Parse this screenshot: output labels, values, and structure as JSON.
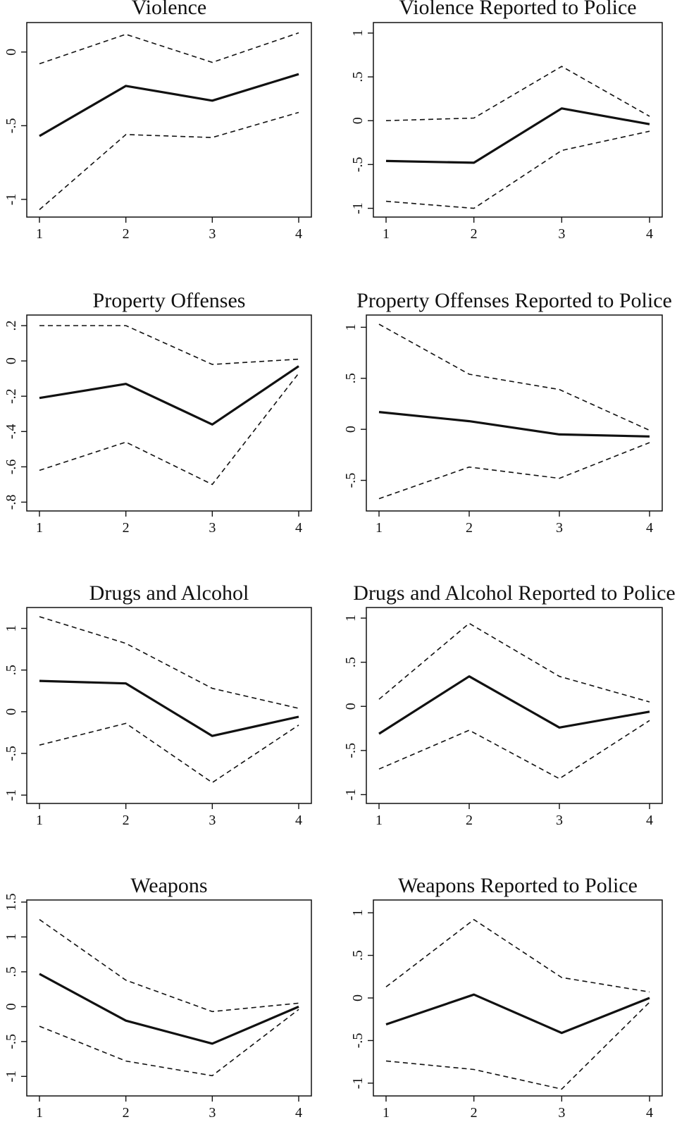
{
  "chart_data": [
    {
      "type": "line",
      "title": "Violence",
      "x": [
        1,
        2,
        3,
        4
      ],
      "x_ticks": [
        1,
        2,
        3,
        4
      ],
      "ylim": [
        -1.12,
        0.2
      ],
      "y_ticks": [
        {
          "value": -1,
          "label": "-1"
        },
        {
          "value": -0.5,
          "label": "-.5"
        },
        {
          "value": 0,
          "label": "0"
        }
      ],
      "series": [
        {
          "role": "estimate",
          "values": [
            -0.57,
            -0.23,
            -0.33,
            -0.15
          ]
        },
        {
          "role": "upper",
          "values": [
            -0.08,
            0.12,
            -0.07,
            0.13
          ]
        },
        {
          "role": "lower",
          "values": [
            -1.07,
            -0.56,
            -0.58,
            -0.41
          ]
        }
      ]
    },
    {
      "type": "line",
      "title": "Violence Reported to Police",
      "x": [
        1,
        2,
        3,
        4
      ],
      "x_ticks": [
        1,
        2,
        3,
        4
      ],
      "ylim": [
        -1.1,
        1.12
      ],
      "y_ticks": [
        {
          "value": -1,
          "label": "-1"
        },
        {
          "value": -0.5,
          "label": "-.5"
        },
        {
          "value": 0,
          "label": "0"
        },
        {
          "value": 0.5,
          "label": ".5"
        },
        {
          "value": 1,
          "label": "1"
        }
      ],
      "series": [
        {
          "role": "estimate",
          "values": [
            -0.46,
            -0.48,
            0.14,
            -0.04
          ]
        },
        {
          "role": "upper",
          "values": [
            0.0,
            0.03,
            0.62,
            0.05
          ]
        },
        {
          "role": "lower",
          "values": [
            -0.92,
            -1.0,
            -0.34,
            -0.12
          ]
        }
      ]
    },
    {
      "type": "line",
      "title": "Property Offenses",
      "x": [
        1,
        2,
        3,
        4
      ],
      "x_ticks": [
        1,
        2,
        3,
        4
      ],
      "ylim": [
        -0.85,
        0.26
      ],
      "y_ticks": [
        {
          "value": -0.8,
          "label": "-.8"
        },
        {
          "value": -0.6,
          "label": "-.6"
        },
        {
          "value": -0.4,
          "label": "-.4"
        },
        {
          "value": -0.2,
          "label": "-.2"
        },
        {
          "value": 0,
          "label": "0"
        },
        {
          "value": 0.2,
          "label": ".2"
        }
      ],
      "series": [
        {
          "role": "estimate",
          "values": [
            -0.21,
            -0.13,
            -0.36,
            -0.03
          ]
        },
        {
          "role": "upper",
          "values": [
            0.2,
            0.2,
            -0.02,
            0.01
          ]
        },
        {
          "role": "lower",
          "values": [
            -0.62,
            -0.46,
            -0.7,
            -0.07
          ]
        }
      ]
    },
    {
      "type": "line",
      "title": "Property Offenses Reported to Police",
      "x": [
        1,
        2,
        3,
        4
      ],
      "x_ticks": [
        1,
        2,
        3,
        4
      ],
      "ylim": [
        -0.8,
        1.12
      ],
      "y_ticks": [
        {
          "value": -0.5,
          "label": "-.5"
        },
        {
          "value": 0,
          "label": "0"
        },
        {
          "value": 0.5,
          "label": ".5"
        },
        {
          "value": 1,
          "label": "1"
        }
      ],
      "series": [
        {
          "role": "estimate",
          "values": [
            0.17,
            0.08,
            -0.05,
            -0.07
          ]
        },
        {
          "role": "upper",
          "values": [
            1.03,
            0.54,
            0.39,
            -0.01
          ]
        },
        {
          "role": "lower",
          "values": [
            -0.68,
            -0.37,
            -0.48,
            -0.13
          ]
        }
      ]
    },
    {
      "type": "line",
      "title": "Drugs and Alcohol",
      "x": [
        1,
        2,
        3,
        4
      ],
      "x_ticks": [
        1,
        2,
        3,
        4
      ],
      "ylim": [
        -1.1,
        1.25
      ],
      "y_ticks": [
        {
          "value": -1,
          "label": "-1"
        },
        {
          "value": -0.5,
          "label": "-.5"
        },
        {
          "value": 0,
          "label": "0"
        },
        {
          "value": 0.5,
          "label": ".5"
        },
        {
          "value": 1,
          "label": "1"
        }
      ],
      "series": [
        {
          "role": "estimate",
          "values": [
            0.37,
            0.34,
            -0.29,
            -0.06
          ]
        },
        {
          "role": "upper",
          "values": [
            1.14,
            0.82,
            0.28,
            0.04
          ]
        },
        {
          "role": "lower",
          "values": [
            -0.4,
            -0.14,
            -0.85,
            -0.16
          ]
        }
      ]
    },
    {
      "type": "line",
      "title": "Drugs and Alcohol Reported to Police",
      "x": [
        1,
        2,
        3,
        4
      ],
      "x_ticks": [
        1,
        2,
        3,
        4
      ],
      "ylim": [
        -1.1,
        1.12
      ],
      "y_ticks": [
        {
          "value": -1,
          "label": "-1"
        },
        {
          "value": -0.5,
          "label": "-.5"
        },
        {
          "value": 0,
          "label": "0"
        },
        {
          "value": 0.5,
          "label": ".5"
        },
        {
          "value": 1,
          "label": "1"
        }
      ],
      "series": [
        {
          "role": "estimate",
          "values": [
            -0.31,
            0.34,
            -0.24,
            -0.06
          ]
        },
        {
          "role": "upper",
          "values": [
            0.08,
            0.94,
            0.34,
            0.05
          ]
        },
        {
          "role": "lower",
          "values": [
            -0.71,
            -0.27,
            -0.82,
            -0.16
          ]
        }
      ]
    },
    {
      "type": "line",
      "title": "Weapons",
      "x": [
        1,
        2,
        3,
        4
      ],
      "x_ticks": [
        1,
        2,
        3,
        4
      ],
      "ylim": [
        -1.28,
        1.53
      ],
      "y_ticks": [
        {
          "value": -1,
          "label": "-1"
        },
        {
          "value": -0.5,
          "label": "-.5"
        },
        {
          "value": 0,
          "label": "0"
        },
        {
          "value": 0.5,
          "label": ".5"
        },
        {
          "value": 1,
          "label": "1"
        },
        {
          "value": 1.5,
          "label": "1.5"
        }
      ],
      "series": [
        {
          "role": "estimate",
          "values": [
            0.47,
            -0.2,
            -0.53,
            0.0
          ]
        },
        {
          "role": "upper",
          "values": [
            1.25,
            0.38,
            -0.07,
            0.05
          ]
        },
        {
          "role": "lower",
          "values": [
            -0.28,
            -0.78,
            -0.99,
            -0.04
          ]
        }
      ]
    },
    {
      "type": "line",
      "title": "Weapons Reported to Police",
      "x": [
        1,
        2,
        3,
        4
      ],
      "x_ticks": [
        1,
        2,
        3,
        4
      ],
      "ylim": [
        -1.15,
        1.15
      ],
      "y_ticks": [
        {
          "value": -1,
          "label": "-1"
        },
        {
          "value": -0.5,
          "label": "-.5"
        },
        {
          "value": 0,
          "label": "0"
        },
        {
          "value": 0.5,
          "label": ".5"
        },
        {
          "value": 1,
          "label": "1"
        }
      ],
      "series": [
        {
          "role": "estimate",
          "values": [
            -0.31,
            0.04,
            -0.41,
            0.0
          ]
        },
        {
          "role": "upper",
          "values": [
            0.13,
            0.92,
            0.24,
            0.07
          ]
        },
        {
          "role": "lower",
          "values": [
            -0.74,
            -0.84,
            -1.07,
            -0.05
          ]
        }
      ]
    }
  ]
}
